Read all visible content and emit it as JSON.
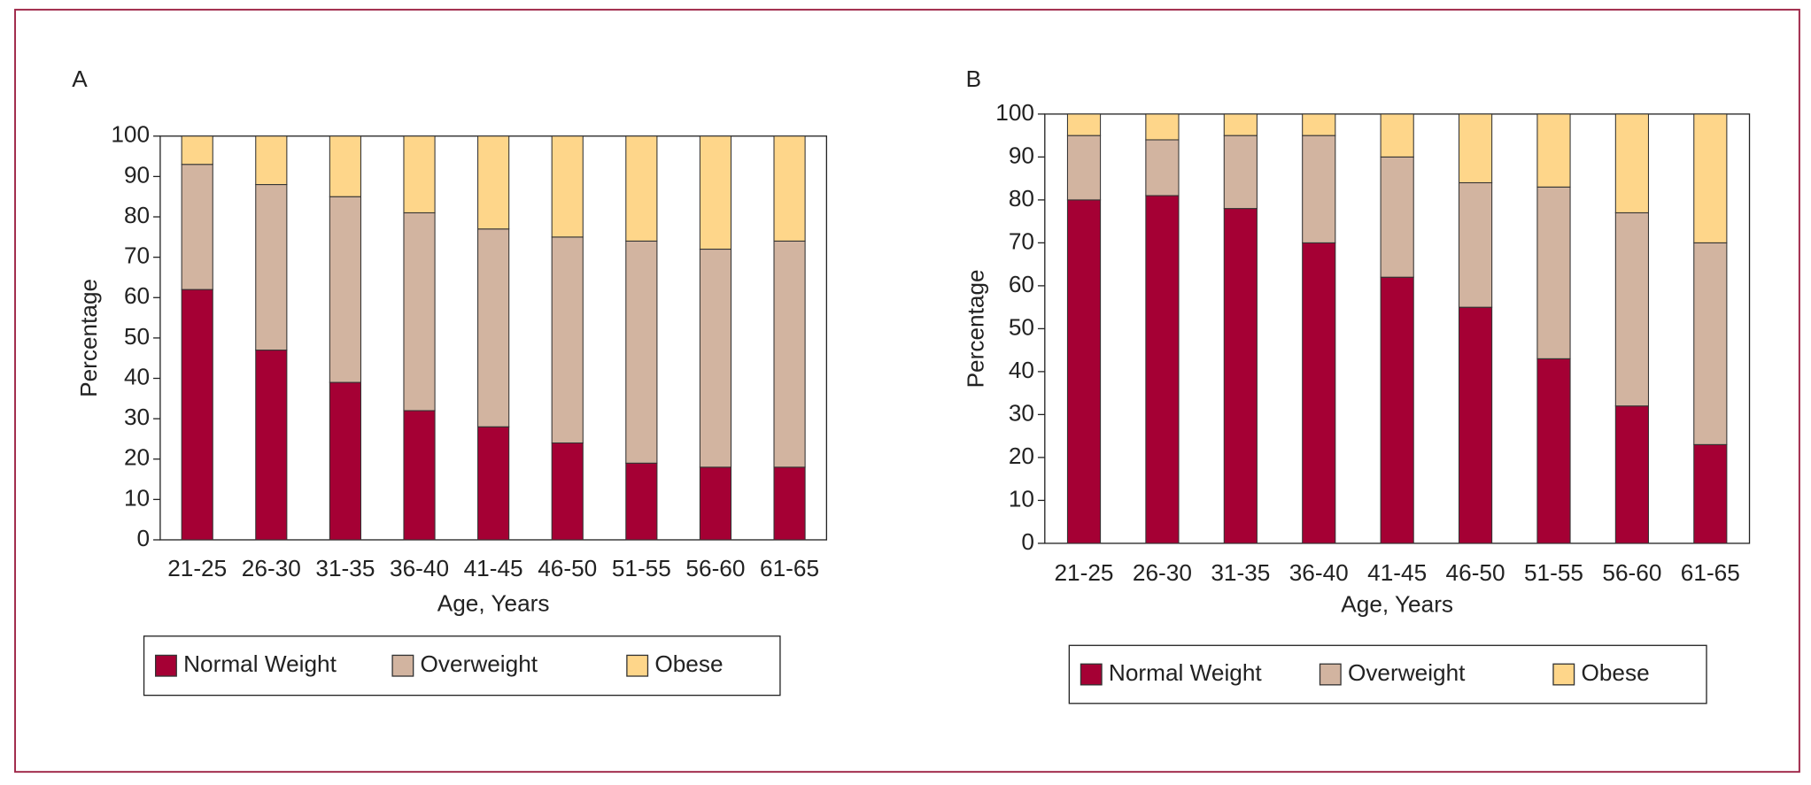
{
  "chart_data": [
    {
      "type": "bar",
      "stacked": true,
      "title": "A",
      "xlabel": "Age, Years",
      "ylabel": "Percentage",
      "categories": [
        "21-25",
        "26-30",
        "31-35",
        "36-40",
        "41-45",
        "46-50",
        "51-55",
        "56-60",
        "61-65"
      ],
      "series": [
        {
          "name": "Normal Weight",
          "color": "#a50034",
          "values": [
            62,
            47,
            39,
            32,
            28,
            24,
            19,
            18,
            18
          ]
        },
        {
          "name": "Overweight",
          "color": "#d2b4a0",
          "values": [
            31,
            41,
            46,
            49,
            49,
            51,
            55,
            54,
            56
          ]
        },
        {
          "name": "Obese",
          "color": "#fed68a",
          "values": [
            7,
            12,
            15,
            19,
            23,
            25,
            26,
            28,
            26
          ]
        }
      ],
      "ylim": [
        0,
        100
      ],
      "yticks": [
        0,
        10,
        20,
        30,
        40,
        50,
        60,
        70,
        80,
        90,
        100
      ]
    },
    {
      "type": "bar",
      "stacked": true,
      "title": "B",
      "xlabel": "Age, Years",
      "ylabel": "Percentage",
      "categories": [
        "21-25",
        "26-30",
        "31-35",
        "36-40",
        "41-45",
        "46-50",
        "51-55",
        "56-60",
        "61-65"
      ],
      "series": [
        {
          "name": "Normal Weight",
          "color": "#a50034",
          "values": [
            80,
            81,
            78,
            70,
            62,
            55,
            43,
            32,
            23
          ]
        },
        {
          "name": "Overweight",
          "color": "#d2b4a0",
          "values": [
            15,
            13,
            17,
            25,
            28,
            29,
            40,
            45,
            47
          ]
        },
        {
          "name": "Obese",
          "color": "#fed68a",
          "values": [
            5,
            6,
            5,
            5,
            10,
            16,
            17,
            23,
            30
          ]
        }
      ],
      "ylim": [
        0,
        100
      ],
      "yticks": [
        0,
        10,
        20,
        30,
        40,
        50,
        60,
        70,
        80,
        90,
        100
      ]
    }
  ]
}
